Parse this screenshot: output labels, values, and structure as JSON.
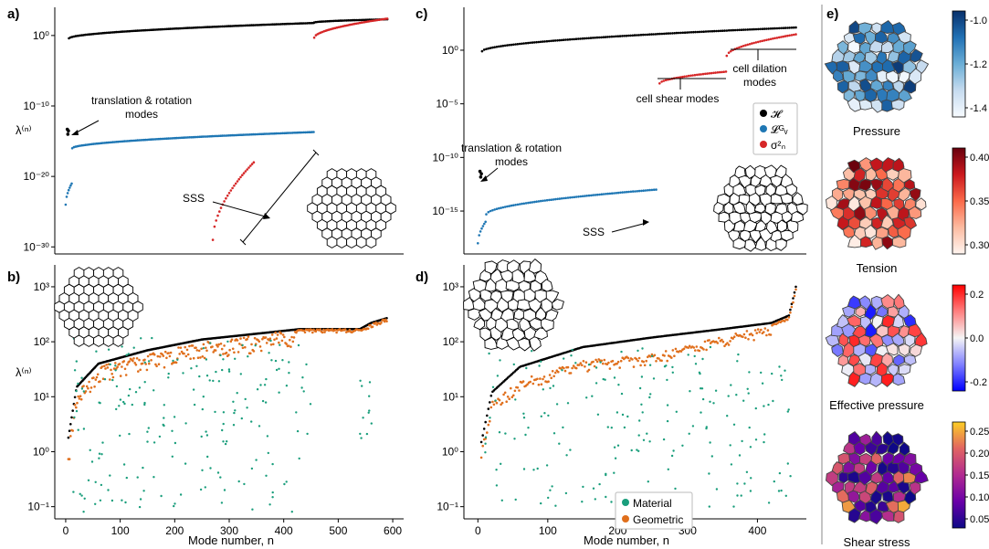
{
  "panel_labels": [
    "a)",
    "b)",
    "c)",
    "d)",
    "e)"
  ],
  "colors": {
    "hessian": "#000000",
    "laplacian": "#1f77b4",
    "sigma": "#d62728",
    "material": "#1a9e7c",
    "geometric": "#e06f1c"
  },
  "annotations": {
    "a_tr_line1": "translation & rotation",
    "a_tr_line2": "modes",
    "a_sss": "SSS",
    "c_tr_line1": "translation & rotation",
    "c_tr_line2": "modes",
    "c_shear": "cell shear modes",
    "c_dil_line1": "cell dilation",
    "c_dil_line2": "modes",
    "c_sss": "SSS"
  },
  "legend_top": [
    "𝓗",
    "𝓛ᴳᵥ",
    "σ²ₙ"
  ],
  "legend_bottom": [
    "Material",
    "Geometric"
  ],
  "ylabel": "λ⁽ⁿ⁾",
  "xlabel": "Mode number, n",
  "heatmaps": [
    {
      "title": "Pressure",
      "ticks": [
        "-1.0",
        "-1.2",
        "-1.4"
      ],
      "cmap": "blues"
    },
    {
      "title": "Tension",
      "ticks": [
        "0.40",
        "0.35",
        "0.30"
      ],
      "cmap": "reds"
    },
    {
      "title": "Effective pressure",
      "ticks": [
        "0.2",
        "0.0",
        "-0.2"
      ],
      "cmap": "bwr"
    },
    {
      "title": "Shear stress",
      "ticks": [
        "0.25",
        "0.20",
        "0.15",
        "0.10",
        "0.05"
      ],
      "cmap": "plasma"
    }
  ],
  "chart_data": [
    {
      "panel": "a)",
      "type": "scatter",
      "xlabel": "",
      "ylabel": "λ⁽ⁿ⁾",
      "xlim": [
        -20,
        620
      ],
      "ylim": [
        1e-31,
        10000.0
      ],
      "yscale": "log",
      "yticks": [
        {
          "v": 1,
          "label": "10⁰"
        },
        {
          "v": 1e-10,
          "label": "10⁻¹⁰"
        },
        {
          "v": 1e-20,
          "label": "10⁻²⁰"
        },
        {
          "v": 1e-30,
          "label": "10⁻³⁰"
        }
      ],
      "series": [
        {
          "key": "hessian",
          "segments": [
            {
              "n0": 6,
              "n1": 455,
              "y0": 0.4,
              "y1": 60
            },
            {
              "n0": 456,
              "n1": 590,
              "y0": 70,
              "y1": 200
            }
          ]
        },
        {
          "key": "laplacian",
          "segments": [
            {
              "n0": 12,
              "n1": 455,
              "y0": 1e-16,
              "y1": 2e-14
            },
            {
              "n0": 0,
              "n1": 11,
              "y0": 1e-24,
              "y1": 1e-21
            }
          ]
        },
        {
          "key": "sigma",
          "segments": [
            {
              "n0": 456,
              "n1": 590,
              "y0": 0.5,
              "y1": 250
            },
            {
              "n0": 270,
              "n1": 345,
              "y0": 1e-29,
              "y1": 1e-18
            }
          ]
        },
        {
          "key": "hessian",
          "points": [
            [
              3,
              5e-14
            ],
            [
              4,
              1e-14
            ],
            [
              5,
              3e-14
            ]
          ]
        }
      ]
    },
    {
      "panel": "b)",
      "type": "scatter",
      "xlabel": "Mode number, n",
      "ylabel": "λ⁽ⁿ⁾",
      "xlim": [
        -20,
        620
      ],
      "ylim": [
        0.06,
        2500
      ],
      "yscale": "log",
      "xticks": [
        0,
        100,
        200,
        300,
        400,
        500,
        600
      ],
      "yticks": [
        {
          "v": 0.1,
          "label": "10⁻¹"
        },
        {
          "v": 1,
          "label": "10⁰"
        },
        {
          "v": 10,
          "label": "10¹"
        },
        {
          "v": 100,
          "label": "10²"
        },
        {
          "v": 1000,
          "label": "10³"
        }
      ],
      "series": [
        {
          "key": "hessian",
          "curve": [
            [
              5,
              1.8
            ],
            [
              20,
              15
            ],
            [
              60,
              40
            ],
            [
              150,
              70
            ],
            [
              250,
              110
            ],
            [
              350,
              140
            ],
            [
              430,
              170
            ],
            [
              540,
              170
            ],
            [
              560,
              220
            ],
            [
              590,
              270
            ]
          ]
        },
        {
          "key": "geometric",
          "curve": [
            [
              5,
              1.0
            ],
            [
              20,
              12
            ],
            [
              60,
              35
            ],
            [
              150,
              60
            ],
            [
              250,
              100
            ],
            [
              350,
              130
            ],
            [
              430,
              170
            ],
            [
              540,
              170
            ],
            [
              560,
              210
            ],
            [
              590,
              270
            ]
          ],
          "scatter": 0.45
        },
        {
          "key": "material",
          "cloud": [
            [
              10,
              450,
              0.08,
              120
            ],
            [
              540,
              565,
              1.5,
              25
            ]
          ]
        }
      ]
    },
    {
      "panel": "c)",
      "type": "scatter",
      "xlabel": "",
      "ylabel": "",
      "xlim": [
        -20,
        470
      ],
      "ylim": [
        1e-19,
        10000.0
      ],
      "yscale": "log",
      "yticks": [
        {
          "v": 1,
          "label": "10⁰"
        },
        {
          "v": 1e-05,
          "label": "10⁻⁵"
        },
        {
          "v": 1e-10,
          "label": "10⁻¹⁰"
        },
        {
          "v": 1e-15,
          "label": "10⁻¹⁵"
        }
      ],
      "series": [
        {
          "key": "hessian",
          "segments": [
            {
              "n0": 6,
              "n1": 455,
              "y0": 0.8,
              "y1": 130
            }
          ]
        },
        {
          "key": "laplacian",
          "segments": [
            {
              "n0": 12,
              "n1": 255,
              "y0": 5e-16,
              "y1": 1e-13
            },
            {
              "n0": 0,
              "n1": 11,
              "y0": 1e-18,
              "y1": 1e-16
            }
          ]
        },
        {
          "key": "sigma",
          "segments": [
            {
              "n0": 260,
              "n1": 355,
              "y0": 0.0008,
              "y1": 0.01
            },
            {
              "n0": 356,
              "n1": 455,
              "y0": 0.3,
              "y1": 30
            }
          ]
        },
        {
          "key": "hessian",
          "points": [
            [
              3,
              5e-12
            ],
            [
              4,
              1.5e-12
            ],
            [
              5,
              3e-12
            ]
          ]
        }
      ]
    },
    {
      "panel": "d)",
      "type": "scatter",
      "xlabel": "Mode number, n",
      "ylabel": "",
      "xlim": [
        -20,
        470
      ],
      "ylim": [
        0.06,
        2500
      ],
      "yscale": "log",
      "xticks": [
        0,
        100,
        200,
        300,
        400
      ],
      "yticks": [
        {
          "v": 0.1,
          "label": "10⁻¹"
        },
        {
          "v": 1,
          "label": "10⁰"
        },
        {
          "v": 10,
          "label": "10¹"
        },
        {
          "v": 100,
          "label": "10²"
        },
        {
          "v": 1000,
          "label": "10³"
        }
      ],
      "series": [
        {
          "key": "hessian",
          "curve": [
            [
              5,
              1.5
            ],
            [
              20,
              12
            ],
            [
              60,
              35
            ],
            [
              150,
              80
            ],
            [
              250,
              120
            ],
            [
              350,
              170
            ],
            [
              420,
              220
            ],
            [
              445,
              300
            ],
            [
              455,
              1000
            ]
          ]
        },
        {
          "key": "geometric",
          "curve": [
            [
              5,
              1.0
            ],
            [
              20,
              8
            ],
            [
              60,
              20
            ],
            [
              150,
              45
            ],
            [
              250,
              60
            ],
            [
              350,
              130
            ],
            [
              420,
              200
            ],
            [
              445,
              280
            ],
            [
              455,
              900
            ]
          ],
          "scatter": 0.3
        },
        {
          "key": "material",
          "cloud": [
            [
              10,
              450,
              0.1,
              80
            ]
          ]
        }
      ]
    }
  ]
}
